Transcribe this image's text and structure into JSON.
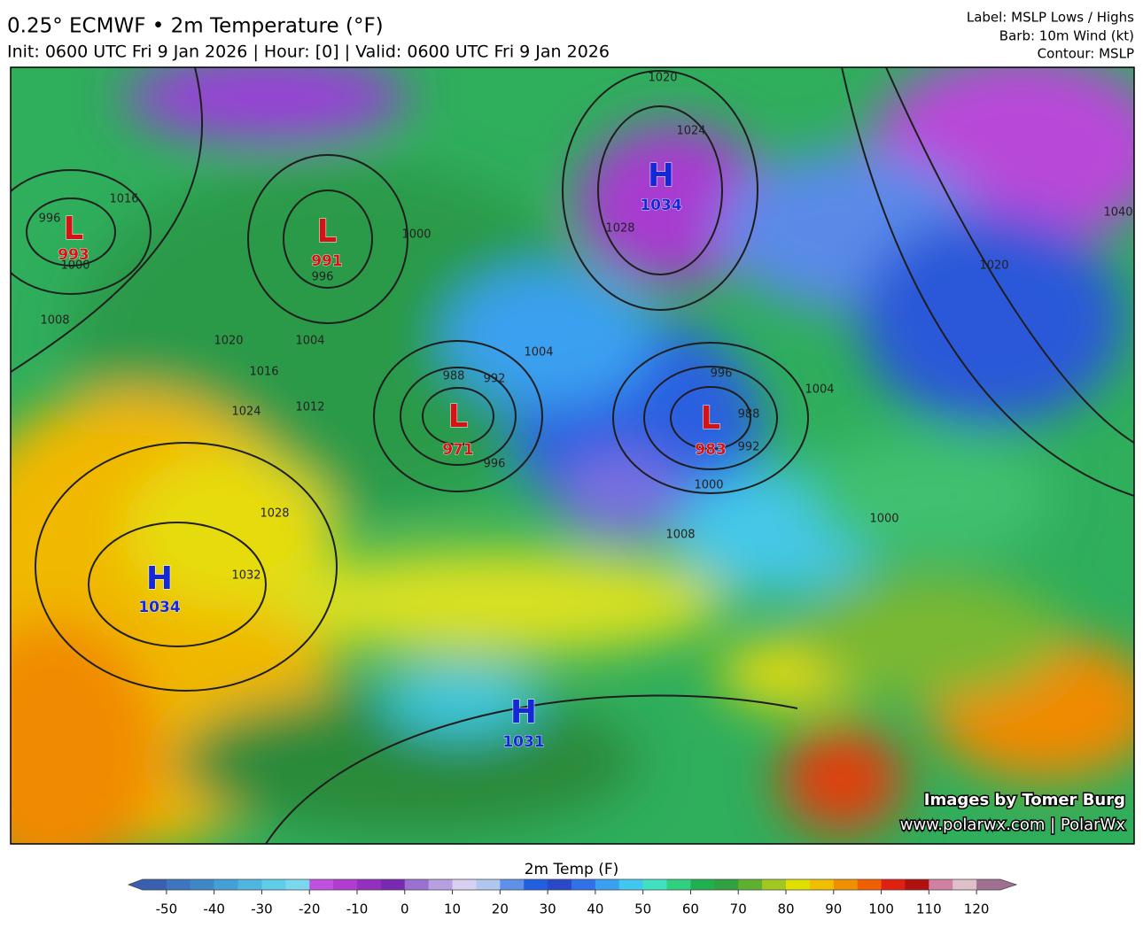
{
  "header": {
    "title": "0.25° ECMWF • 2m Temperature (°F)",
    "subtitle": "Init: 0600 UTC Fri 9 Jan 2026 | Hour: [0] | Valid: 0600 UTC Fri 9 Jan 2026",
    "legend_lines": [
      "Label: MSLP Lows / Highs",
      "Barb: 10m Wind (kt)",
      "Contour: MSLP"
    ]
  },
  "pressure_centers": [
    {
      "label": "L",
      "value": 993
    },
    {
      "label": "L",
      "value": 991
    },
    {
      "label": "L",
      "value": 971
    },
    {
      "label": "L",
      "value": 983
    },
    {
      "label": "H",
      "value": 1034
    },
    {
      "label": "H",
      "value": 1034
    },
    {
      "label": "H",
      "value": 1031
    }
  ],
  "center_colors": {
    "L": "#d41414",
    "H": "#1428d8"
  },
  "contour_labels": [
    996,
    1000,
    1016,
    1008,
    996,
    1000,
    1020,
    1016,
    1004,
    1012,
    1024,
    1028,
    1032,
    988,
    992,
    996,
    1020,
    1024,
    1028,
    996,
    988,
    992,
    1000,
    1008,
    1004,
    1000,
    1020,
    1040,
    1004
  ],
  "credits": [
    "Images by Tomer Burg",
    "www.polarwx.com | PolarWx"
  ],
  "colorbar": {
    "title": "2m Temp (F)",
    "range": [
      -55,
      125
    ],
    "ticks": [
      -50,
      -40,
      -30,
      -20,
      -10,
      0,
      10,
      20,
      30,
      40,
      50,
      60,
      70,
      80,
      90,
      100,
      110,
      120
    ],
    "colors": [
      "#3a5fb0",
      "#3f74c0",
      "#3f88c8",
      "#45a0d8",
      "#50b6e0",
      "#5fcce8",
      "#7ad8ec",
      "#c050e0",
      "#b03cd0",
      "#9430c0",
      "#7a2ab0",
      "#9a70d0",
      "#b8a0e0",
      "#d8d0f0",
      "#b0c8f0",
      "#6090e8",
      "#2060e0",
      "#2a48c8",
      "#3070e8",
      "#3aa0f0",
      "#40c8f0",
      "#40e0c0",
      "#30d080",
      "#20b050",
      "#30a040",
      "#60b030",
      "#a0c820",
      "#e0e000",
      "#f0c000",
      "#f09000",
      "#f06000",
      "#e02010",
      "#b01010",
      "#d080a0",
      "#e0c0c8",
      "#a07090"
    ]
  }
}
